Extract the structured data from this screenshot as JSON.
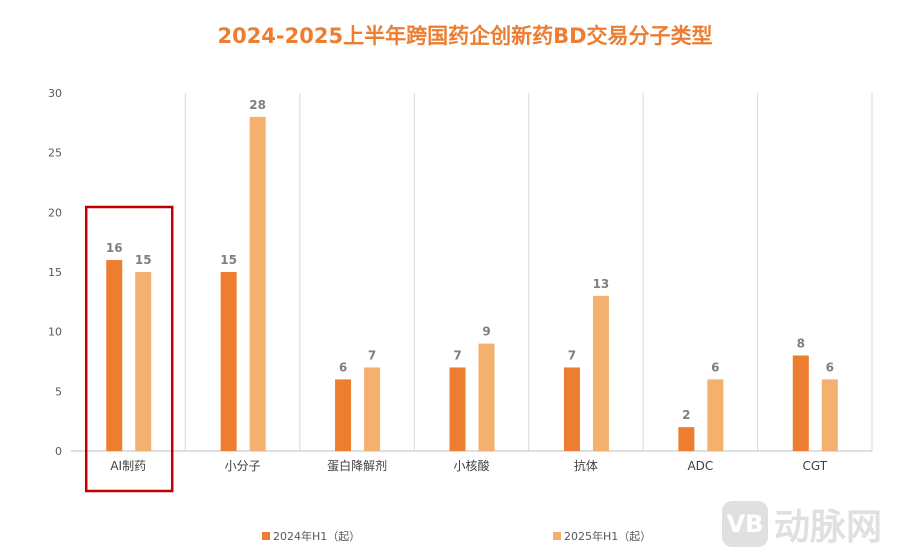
{
  "chart_data": {
    "type": "bar",
    "title": "2024-2025上半年跨国药企创新药BD交易分子类型",
    "categories": [
      "AI制药",
      "小分子",
      "蛋白降解剂",
      "小核酸",
      "抗体",
      "ADC",
      "CGT"
    ],
    "series": [
      {
        "name": "2024年H1（起）",
        "values": [
          16,
          15,
          6,
          7,
          7,
          2,
          8
        ],
        "color": "#ED7D31"
      },
      {
        "name": "2025年H1（起）",
        "values": [
          15,
          28,
          7,
          9,
          13,
          6,
          6
        ],
        "color": "#F4B06E"
      }
    ],
    "ylim": [
      0,
      30
    ],
    "yticks": [
      0,
      5,
      10,
      15,
      20,
      25,
      30
    ],
    "grid": "vertical category separators",
    "legend": "bottom",
    "highlight": {
      "category": "AI制药",
      "color": "#C00000"
    }
  },
  "watermark": {
    "logo": "VB",
    "text": "动脉网"
  }
}
